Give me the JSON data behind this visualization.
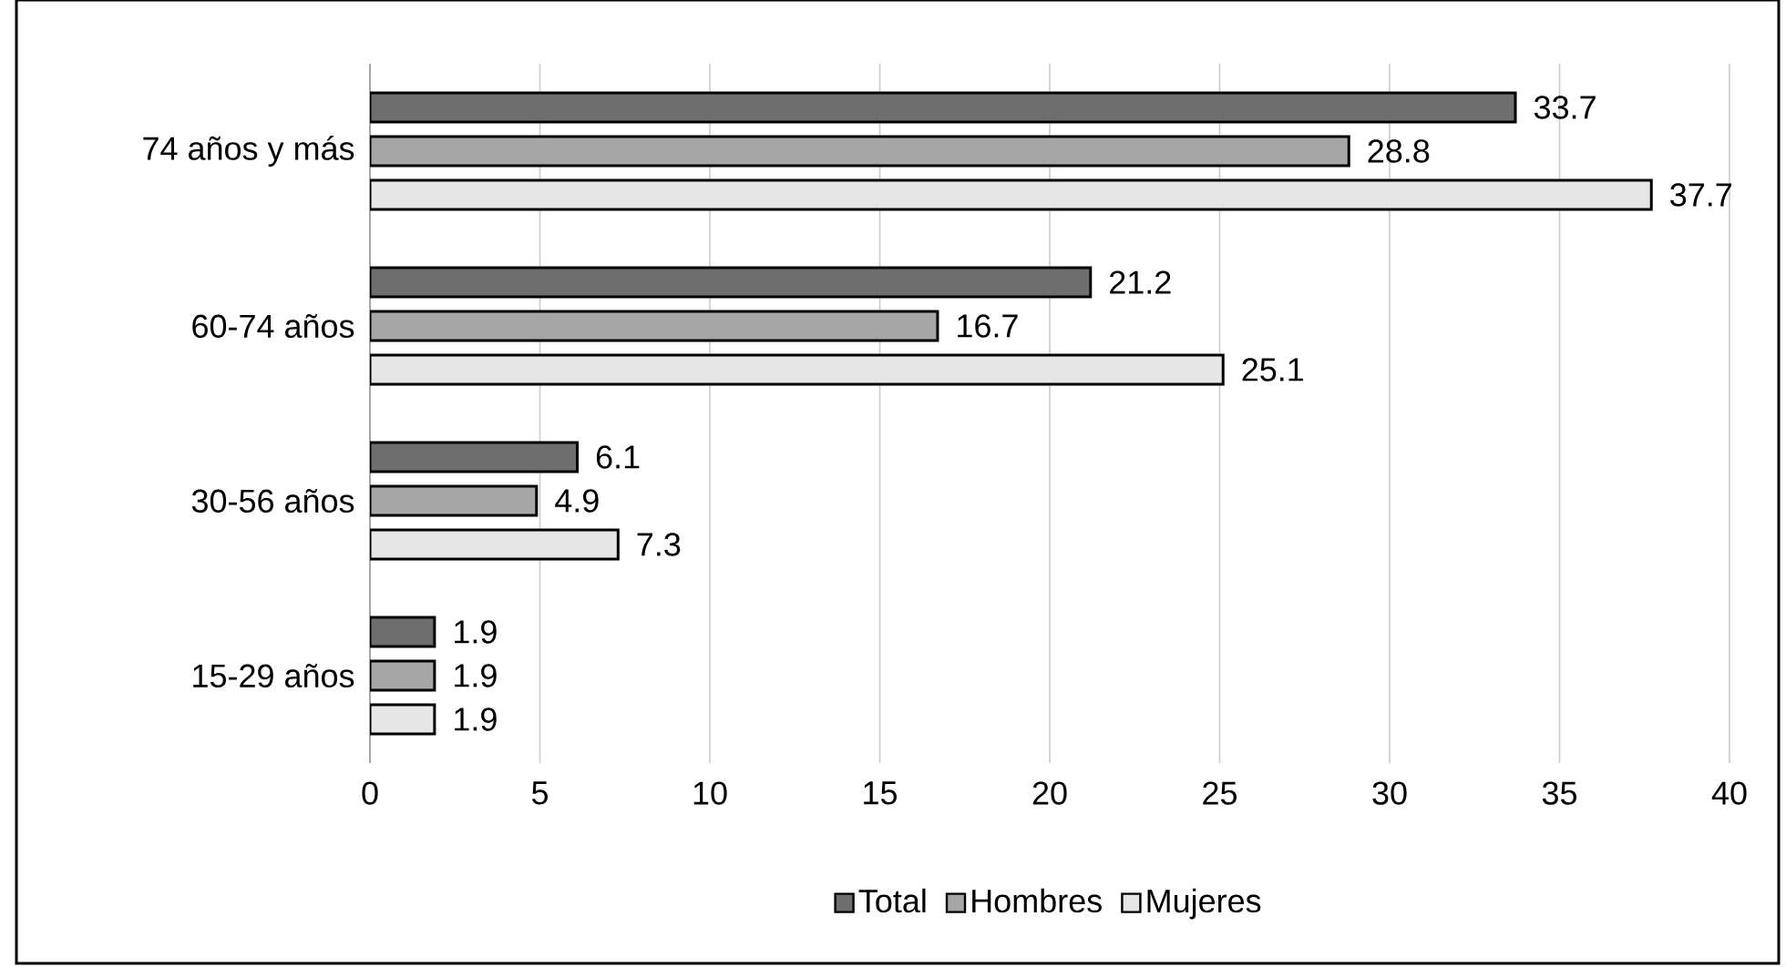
{
  "chart_data": {
    "type": "bar",
    "orientation": "horizontal",
    "categories": [
      "74 años y más",
      "60-74 años",
      "30-56 años",
      "15-29 años"
    ],
    "series": [
      {
        "name": "Total",
        "color": "#6e6e6e",
        "values": [
          33.7,
          21.2,
          6.1,
          1.9
        ]
      },
      {
        "name": "Hombres",
        "color": "#a6a6a6",
        "values": [
          28.8,
          16.7,
          4.9,
          1.9
        ]
      },
      {
        "name": "Mujeres",
        "color": "#e6e6e6",
        "values": [
          37.7,
          25.1,
          7.3,
          1.9
        ]
      }
    ],
    "xlim": [
      0,
      40
    ],
    "xticks": [
      0,
      5,
      10,
      15,
      20,
      25,
      30,
      35,
      40
    ],
    "grid": "x",
    "legend": "bottom",
    "data_labels": true
  }
}
